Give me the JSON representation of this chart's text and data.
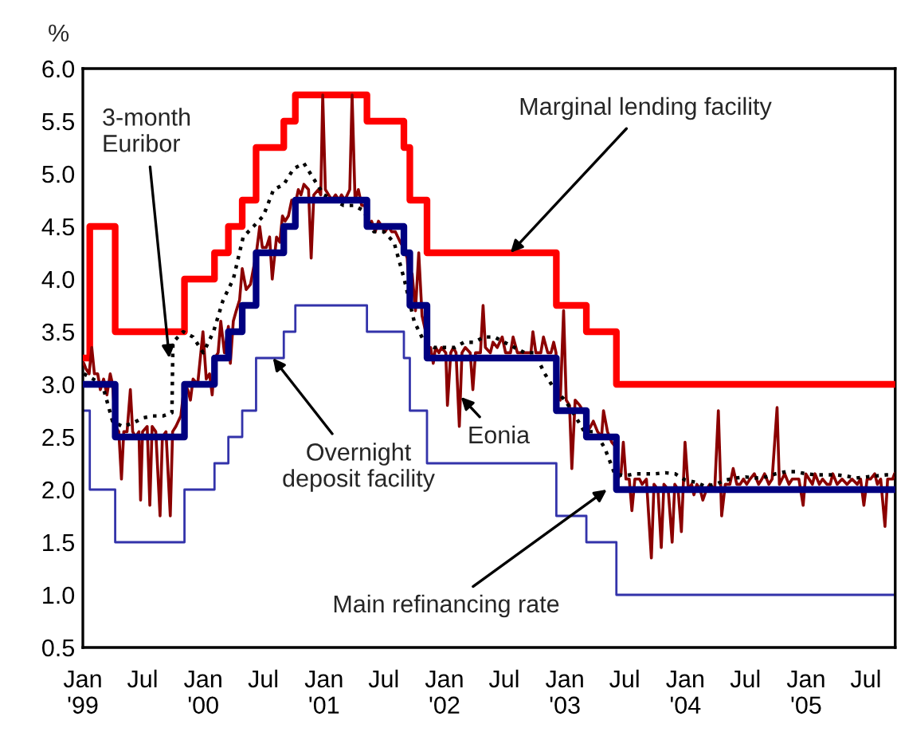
{
  "chart_data": {
    "type": "line",
    "ylabel": "%",
    "xlim": [
      "1999-01-01",
      "2005-09-28"
    ],
    "ylim": [
      0.5,
      6.0
    ],
    "yticks": [
      {
        "value": 0.5,
        "label": "0.5"
      },
      {
        "value": 1.0,
        "label": "1.0"
      },
      {
        "value": 1.5,
        "label": "1.5"
      },
      {
        "value": 2.0,
        "label": "2.0"
      },
      {
        "value": 2.5,
        "label": "2.5"
      },
      {
        "value": 3.0,
        "label": "3.0"
      },
      {
        "value": 3.5,
        "label": "3.5"
      },
      {
        "value": 4.0,
        "label": "4.0"
      },
      {
        "value": 4.5,
        "label": "4.5"
      },
      {
        "value": 5.0,
        "label": "5.0"
      },
      {
        "value": 5.5,
        "label": "5.5"
      },
      {
        "value": 6.0,
        "label": "6.0"
      }
    ],
    "xticks": [
      {
        "value": "1999-01-01",
        "label": "Jan\n'99"
      },
      {
        "value": "1999-07-01",
        "label": "Jul"
      },
      {
        "value": "2000-01-01",
        "label": "Jan\n'00"
      },
      {
        "value": "2000-07-01",
        "label": "Jul"
      },
      {
        "value": "2001-01-01",
        "label": "Jan\n'01"
      },
      {
        "value": "2001-07-01",
        "label": "Jul"
      },
      {
        "value": "2002-01-01",
        "label": "Jan\n'02"
      },
      {
        "value": "2002-07-01",
        "label": "Jul"
      },
      {
        "value": "2003-01-01",
        "label": "Jan\n'03"
      },
      {
        "value": "2003-07-01",
        "label": "Jul"
      },
      {
        "value": "2004-01-01",
        "label": "Jan\n'04"
      },
      {
        "value": "2004-07-01",
        "label": "Jul"
      },
      {
        "value": "2005-01-01",
        "label": "Jan\n'05"
      },
      {
        "value": "2005-07-01",
        "label": "Jul"
      }
    ],
    "grid": false,
    "legend": false,
    "series": [
      {
        "type": "step",
        "color": "#3333aa",
        "line_style": "solid",
        "x": [
          "1999-01-01",
          "1999-01-22",
          "1999-04-09",
          "1999-11-05",
          "2000-02-04",
          "2000-03-17",
          "2000-04-28",
          "2000-06-09",
          "2000-09-01",
          "2000-10-06",
          "2001-05-11",
          "2001-08-31",
          "2001-09-18",
          "2001-11-09",
          "2002-12-06",
          "2003-03-07",
          "2003-06-06",
          "2005-09-28"
        ],
        "values": [
          2.75,
          2.0,
          1.5,
          2.0,
          2.25,
          2.5,
          2.75,
          3.25,
          3.5,
          3.75,
          3.5,
          3.25,
          2.75,
          2.25,
          1.75,
          1.5,
          1.0,
          1.0
        ]
      },
      {
        "type": "step",
        "color": "#ff0000",
        "line_style": "solid",
        "x": [
          "1999-01-01",
          "1999-01-22",
          "1999-04-09",
          "1999-11-05",
          "2000-02-04",
          "2000-03-17",
          "2000-04-28",
          "2000-06-09",
          "2000-09-01",
          "2000-10-06",
          "2001-05-11",
          "2001-08-31",
          "2001-09-18",
          "2001-11-09",
          "2002-12-06",
          "2003-03-07",
          "2003-06-06",
          "2005-09-28"
        ],
        "values": [
          3.25,
          4.5,
          3.5,
          4.0,
          4.25,
          4.5,
          4.75,
          5.25,
          5.5,
          5.75,
          5.5,
          5.25,
          4.75,
          4.25,
          3.75,
          3.5,
          3.0,
          3.0
        ]
      },
      {
        "color": "#8b0000",
        "line_style": "solid",
        "x": [
          "1999-01-04",
          "1999-01-10",
          "1999-01-20",
          "1999-01-28",
          "1999-02-05",
          "1999-02-15",
          "1999-02-23",
          "1999-03-05",
          "1999-03-15",
          "1999-03-25",
          "1999-04-01",
          "1999-04-10",
          "1999-04-20",
          "1999-04-28",
          "1999-05-05",
          "1999-05-15",
          "1999-05-25",
          "1999-06-01",
          "1999-06-10",
          "1999-06-20",
          "1999-06-25",
          "1999-07-01",
          "1999-07-15",
          "1999-07-23",
          "1999-07-30",
          "1999-08-10",
          "1999-08-23",
          "1999-08-30",
          "1999-09-10",
          "1999-09-23",
          "1999-09-30",
          "1999-10-10",
          "1999-10-25",
          "1999-11-05",
          "1999-11-15",
          "1999-11-23",
          "1999-12-01",
          "1999-12-15",
          "1999-12-31",
          "2000-01-10",
          "2000-01-20",
          "2000-01-28",
          "2000-02-05",
          "2000-02-15",
          "2000-02-23",
          "2000-03-05",
          "2000-03-17",
          "2000-03-23",
          "2000-04-01",
          "2000-04-10",
          "2000-04-20",
          "2000-04-28",
          "2000-05-10",
          "2000-05-23",
          "2000-06-01",
          "2000-06-10",
          "2000-06-20",
          "2000-06-28",
          "2000-07-10",
          "2000-07-20",
          "2000-07-28",
          "2000-08-10",
          "2000-08-20",
          "2000-08-28",
          "2000-09-05",
          "2000-09-15",
          "2000-09-25",
          "2000-10-05",
          "2000-10-15",
          "2000-10-23",
          "2000-11-01",
          "2000-11-15",
          "2000-11-23",
          "2000-12-01",
          "2000-12-15",
          "2000-12-22",
          "2000-12-28",
          "2001-01-05",
          "2001-01-15",
          "2001-01-25",
          "2001-02-05",
          "2001-02-15",
          "2001-02-23",
          "2001-03-05",
          "2001-03-20",
          "2001-03-27",
          "2001-04-05",
          "2001-04-15",
          "2001-04-25",
          "2001-05-05",
          "2001-05-15",
          "2001-05-25",
          "2001-06-05",
          "2001-06-15",
          "2001-06-25",
          "2001-07-05",
          "2001-07-15",
          "2001-07-25",
          "2001-08-05",
          "2001-08-20",
          "2001-08-30",
          "2001-09-10",
          "2001-09-18",
          "2001-09-25",
          "2001-10-05",
          "2001-10-15",
          "2001-10-25",
          "2001-11-05",
          "2001-11-12",
          "2001-11-20",
          "2001-11-28",
          "2001-12-05",
          "2001-12-15",
          "2001-12-23",
          "2002-01-05",
          "2002-01-10",
          "2002-01-20",
          "2002-01-28",
          "2002-02-05",
          "2002-02-15",
          "2002-02-23",
          "2002-03-05",
          "2002-03-20",
          "2002-03-28",
          "2002-04-05",
          "2002-04-20",
          "2002-04-28",
          "2002-05-05",
          "2002-05-20",
          "2002-05-28",
          "2002-06-10",
          "2002-06-25",
          "2002-07-05",
          "2002-07-20",
          "2002-07-28",
          "2002-08-10",
          "2002-08-23",
          "2002-09-05",
          "2002-09-20",
          "2002-09-26",
          "2002-10-05",
          "2002-10-20",
          "2002-10-28",
          "2002-11-10",
          "2002-11-20",
          "2002-11-28",
          "2002-12-05",
          "2002-12-10",
          "2002-12-18",
          "2002-12-28",
          "2003-01-05",
          "2003-01-15",
          "2003-01-22",
          "2003-02-01",
          "2003-02-15",
          "2003-02-24",
          "2003-03-05",
          "2003-03-10",
          "2003-03-20",
          "2003-03-28",
          "2003-04-10",
          "2003-04-22",
          "2003-04-28",
          "2003-05-10",
          "2003-05-23",
          "2003-06-05",
          "2003-06-10",
          "2003-06-20",
          "2003-06-27",
          "2003-07-05",
          "2003-07-15",
          "2003-07-23",
          "2003-08-01",
          "2003-08-15",
          "2003-08-23",
          "2003-09-05",
          "2003-09-20",
          "2003-09-28",
          "2003-10-10",
          "2003-10-20",
          "2003-10-28",
          "2003-11-10",
          "2003-11-22",
          "2003-11-30",
          "2003-12-10",
          "2003-12-20",
          "2003-12-31",
          "2004-01-10",
          "2004-01-20",
          "2004-01-27",
          "2004-02-05",
          "2004-02-15",
          "2004-02-23",
          "2004-03-05",
          "2004-03-15",
          "2004-03-30",
          "2004-04-10",
          "2004-04-20",
          "2004-05-01",
          "2004-05-15",
          "2004-05-25",
          "2004-06-05",
          "2004-06-15",
          "2004-06-25",
          "2004-07-05",
          "2004-07-15",
          "2004-07-28",
          "2004-08-10",
          "2004-08-20",
          "2004-08-28",
          "2004-09-10",
          "2004-09-20",
          "2004-10-05",
          "2004-10-12",
          "2004-10-20",
          "2004-10-28",
          "2004-11-10",
          "2004-11-20",
          "2004-11-28",
          "2004-12-10",
          "2004-12-23",
          "2004-12-31",
          "2005-01-10",
          "2005-01-20",
          "2005-01-28",
          "2005-02-10",
          "2005-02-20",
          "2005-03-05",
          "2005-03-15",
          "2005-03-23",
          "2005-04-05",
          "2005-04-20",
          "2005-05-05",
          "2005-05-20",
          "2005-06-05",
          "2005-06-15",
          "2005-06-25",
          "2005-07-05",
          "2005-07-15",
          "2005-07-28",
          "2005-08-05",
          "2005-08-15",
          "2005-08-28",
          "2005-09-05",
          "2005-09-20",
          "2005-09-26"
        ],
        "values": [
          3.2,
          3.15,
          3.1,
          3.35,
          3.1,
          3.1,
          2.95,
          3.05,
          2.9,
          3.1,
          3.0,
          2.6,
          2.55,
          2.1,
          2.55,
          2.55,
          2.95,
          2.55,
          2.5,
          2.55,
          1.9,
          2.55,
          2.6,
          1.85,
          2.6,
          2.55,
          1.75,
          2.5,
          2.55,
          1.75,
          2.55,
          2.6,
          2.7,
          3.0,
          2.95,
          2.85,
          3.05,
          3.0,
          3.5,
          3.05,
          3.1,
          2.9,
          3.25,
          3.3,
          3.6,
          3.3,
          3.55,
          3.2,
          3.6,
          3.7,
          3.8,
          4.1,
          3.9,
          3.95,
          4.1,
          4.25,
          4.5,
          4.3,
          4.3,
          4.4,
          4.0,
          4.4,
          4.35,
          4.6,
          4.55,
          4.6,
          4.75,
          4.7,
          4.85,
          4.8,
          4.9,
          4.85,
          4.2,
          4.8,
          4.85,
          4.8,
          5.75,
          4.85,
          4.8,
          4.75,
          4.8,
          4.75,
          4.8,
          4.75,
          4.85,
          5.75,
          4.75,
          4.85,
          4.7,
          4.7,
          4.5,
          4.55,
          4.45,
          4.55,
          4.5,
          4.45,
          4.5,
          4.45,
          4.45,
          4.35,
          4.3,
          4.2,
          3.8,
          4.05,
          3.7,
          4.25,
          3.65,
          3.5,
          3.3,
          3.35,
          3.2,
          3.35,
          3.3,
          3.35,
          3.3,
          2.8,
          3.3,
          3.35,
          3.3,
          2.6,
          3.3,
          3.35,
          3.3,
          2.95,
          3.3,
          3.3,
          3.75,
          3.35,
          3.3,
          3.4,
          3.35,
          3.45,
          3.3,
          3.3,
          3.45,
          3.3,
          3.3,
          3.3,
          3.3,
          3.5,
          3.3,
          3.3,
          3.45,
          3.3,
          3.3,
          3.4,
          3.3,
          2.9,
          2.85,
          3.7,
          2.85,
          2.8,
          2.2,
          2.85,
          2.8,
          2.75,
          2.7,
          2.55,
          2.6,
          2.65,
          2.55,
          2.5,
          2.75,
          2.55,
          2.45,
          2.4,
          2.1,
          2.15,
          2.45,
          2.1,
          2.1,
          1.8,
          2.1,
          2.1,
          2.05,
          2.1,
          1.35,
          2.05,
          2.0,
          1.45,
          2.05,
          2.0,
          1.5,
          2.05,
          2.0,
          1.6,
          2.45,
          2.0,
          2.05,
          1.95,
          2.05,
          2.0,
          1.9,
          2.0,
          2.05,
          2.0,
          2.75,
          1.75,
          2.05,
          2.05,
          2.2,
          2.05,
          2.05,
          2.1,
          2.05,
          2.1,
          2.15,
          2.05,
          2.1,
          2.15,
          2.05,
          2.1,
          2.78,
          2.05,
          2.1,
          2.15,
          2.05,
          2.1,
          2.1,
          2.1,
          1.85,
          2.15,
          2.1,
          2.05,
          2.15,
          2.05,
          2.1,
          2.05,
          2.05,
          2.15,
          2.05,
          2.1,
          2.05,
          2.1,
          2.05,
          2.1,
          1.85,
          2.1,
          2.1,
          2.15,
          2.05,
          2.1,
          1.65,
          2.1,
          2.1,
          2.15
        ]
      },
      {
        "color": "#000000",
        "line_style": "dotted",
        "x": [
          "1999-01-04",
          "1999-02-01",
          "1999-03-01",
          "1999-04-01",
          "1999-05-01",
          "1999-06-01",
          "1999-07-01",
          "1999-08-01",
          "1999-09-01",
          "1999-09-28",
          "1999-10-01",
          "1999-11-01",
          "1999-12-01",
          "2000-01-01",
          "2000-02-01",
          "2000-03-01",
          "2000-04-01",
          "2000-05-01",
          "2000-06-01",
          "2000-07-01",
          "2000-08-01",
          "2000-09-01",
          "2000-10-01",
          "2000-11-01",
          "2000-12-01",
          "2001-01-01",
          "2001-02-01",
          "2001-03-01",
          "2001-04-01",
          "2001-05-01",
          "2001-06-01",
          "2001-07-01",
          "2001-08-01",
          "2001-09-01",
          "2001-10-01",
          "2001-11-01",
          "2001-12-01",
          "2002-01-01",
          "2002-02-01",
          "2002-03-01",
          "2002-04-01",
          "2002-05-01",
          "2002-06-01",
          "2002-07-01",
          "2002-08-01",
          "2002-09-01",
          "2002-10-01",
          "2002-11-01",
          "2002-12-01",
          "2003-01-01",
          "2003-02-01",
          "2003-03-01",
          "2003-04-01",
          "2003-05-01",
          "2003-06-01",
          "2003-07-01",
          "2003-08-01",
          "2003-09-01",
          "2003-10-01",
          "2003-11-01",
          "2003-12-01",
          "2004-01-01",
          "2004-02-01",
          "2004-03-01",
          "2004-04-01",
          "2004-05-01",
          "2004-06-01",
          "2004-07-01",
          "2004-08-01",
          "2004-09-01",
          "2004-10-01",
          "2004-11-01",
          "2004-12-01",
          "2005-01-01",
          "2005-02-01",
          "2005-03-01",
          "2005-04-01",
          "2005-05-01",
          "2005-06-01",
          "2005-07-01",
          "2005-08-01",
          "2005-09-01",
          "2005-09-28"
        ],
        "values": [
          3.1,
          3.05,
          3.0,
          2.65,
          2.6,
          2.63,
          2.68,
          2.7,
          2.7,
          2.73,
          3.4,
          3.5,
          3.45,
          3.3,
          3.5,
          3.8,
          4.0,
          4.4,
          4.5,
          4.6,
          4.85,
          4.9,
          5.05,
          5.1,
          4.95,
          4.8,
          4.75,
          4.7,
          4.7,
          4.65,
          4.45,
          4.45,
          4.35,
          4.0,
          3.6,
          3.4,
          3.35,
          3.35,
          3.35,
          3.4,
          3.4,
          3.45,
          3.45,
          3.4,
          3.35,
          3.3,
          3.3,
          3.1,
          2.95,
          2.85,
          2.7,
          2.55,
          2.55,
          2.4,
          2.15,
          2.13,
          2.15,
          2.15,
          2.15,
          2.16,
          2.15,
          2.09,
          2.07,
          2.03,
          2.05,
          2.09,
          2.11,
          2.12,
          2.11,
          2.12,
          2.15,
          2.17,
          2.17,
          2.15,
          2.14,
          2.14,
          2.14,
          2.13,
          2.11,
          2.12,
          2.13,
          2.14,
          2.14
        ]
      },
      {
        "type": "step",
        "color": "#000080",
        "line_style": "solid",
        "x": [
          "1999-01-01",
          "1999-04-09",
          "1999-11-05",
          "2000-02-04",
          "2000-03-17",
          "2000-04-28",
          "2000-06-09",
          "2000-09-01",
          "2000-10-06",
          "2001-05-11",
          "2001-08-31",
          "2001-09-18",
          "2001-11-09",
          "2002-12-06",
          "2003-03-07",
          "2003-06-06",
          "2005-09-28"
        ],
        "values": [
          3.0,
          2.5,
          3.0,
          3.25,
          3.5,
          3.75,
          4.25,
          4.5,
          4.75,
          4.5,
          4.25,
          3.75,
          3.25,
          2.75,
          2.5,
          2.0,
          2.0
        ]
      }
    ],
    "annotations": [
      {
        "text": "3-month\nEuribor",
        "x": "1999-09-20",
        "y": 3.25
      },
      {
        "text": "Marginal lending facility",
        "x": "2002-07-20",
        "y": 4.25
      },
      {
        "text": "Overnight\ndeposit facility",
        "x": "2000-07-30",
        "y": 3.25
      },
      {
        "text": "Eonia",
        "x": "2002-02-20",
        "y": 2.88
      },
      {
        "text": "Main refinancing rate",
        "x": "2003-05-08",
        "y": 2.0
      }
    ]
  }
}
